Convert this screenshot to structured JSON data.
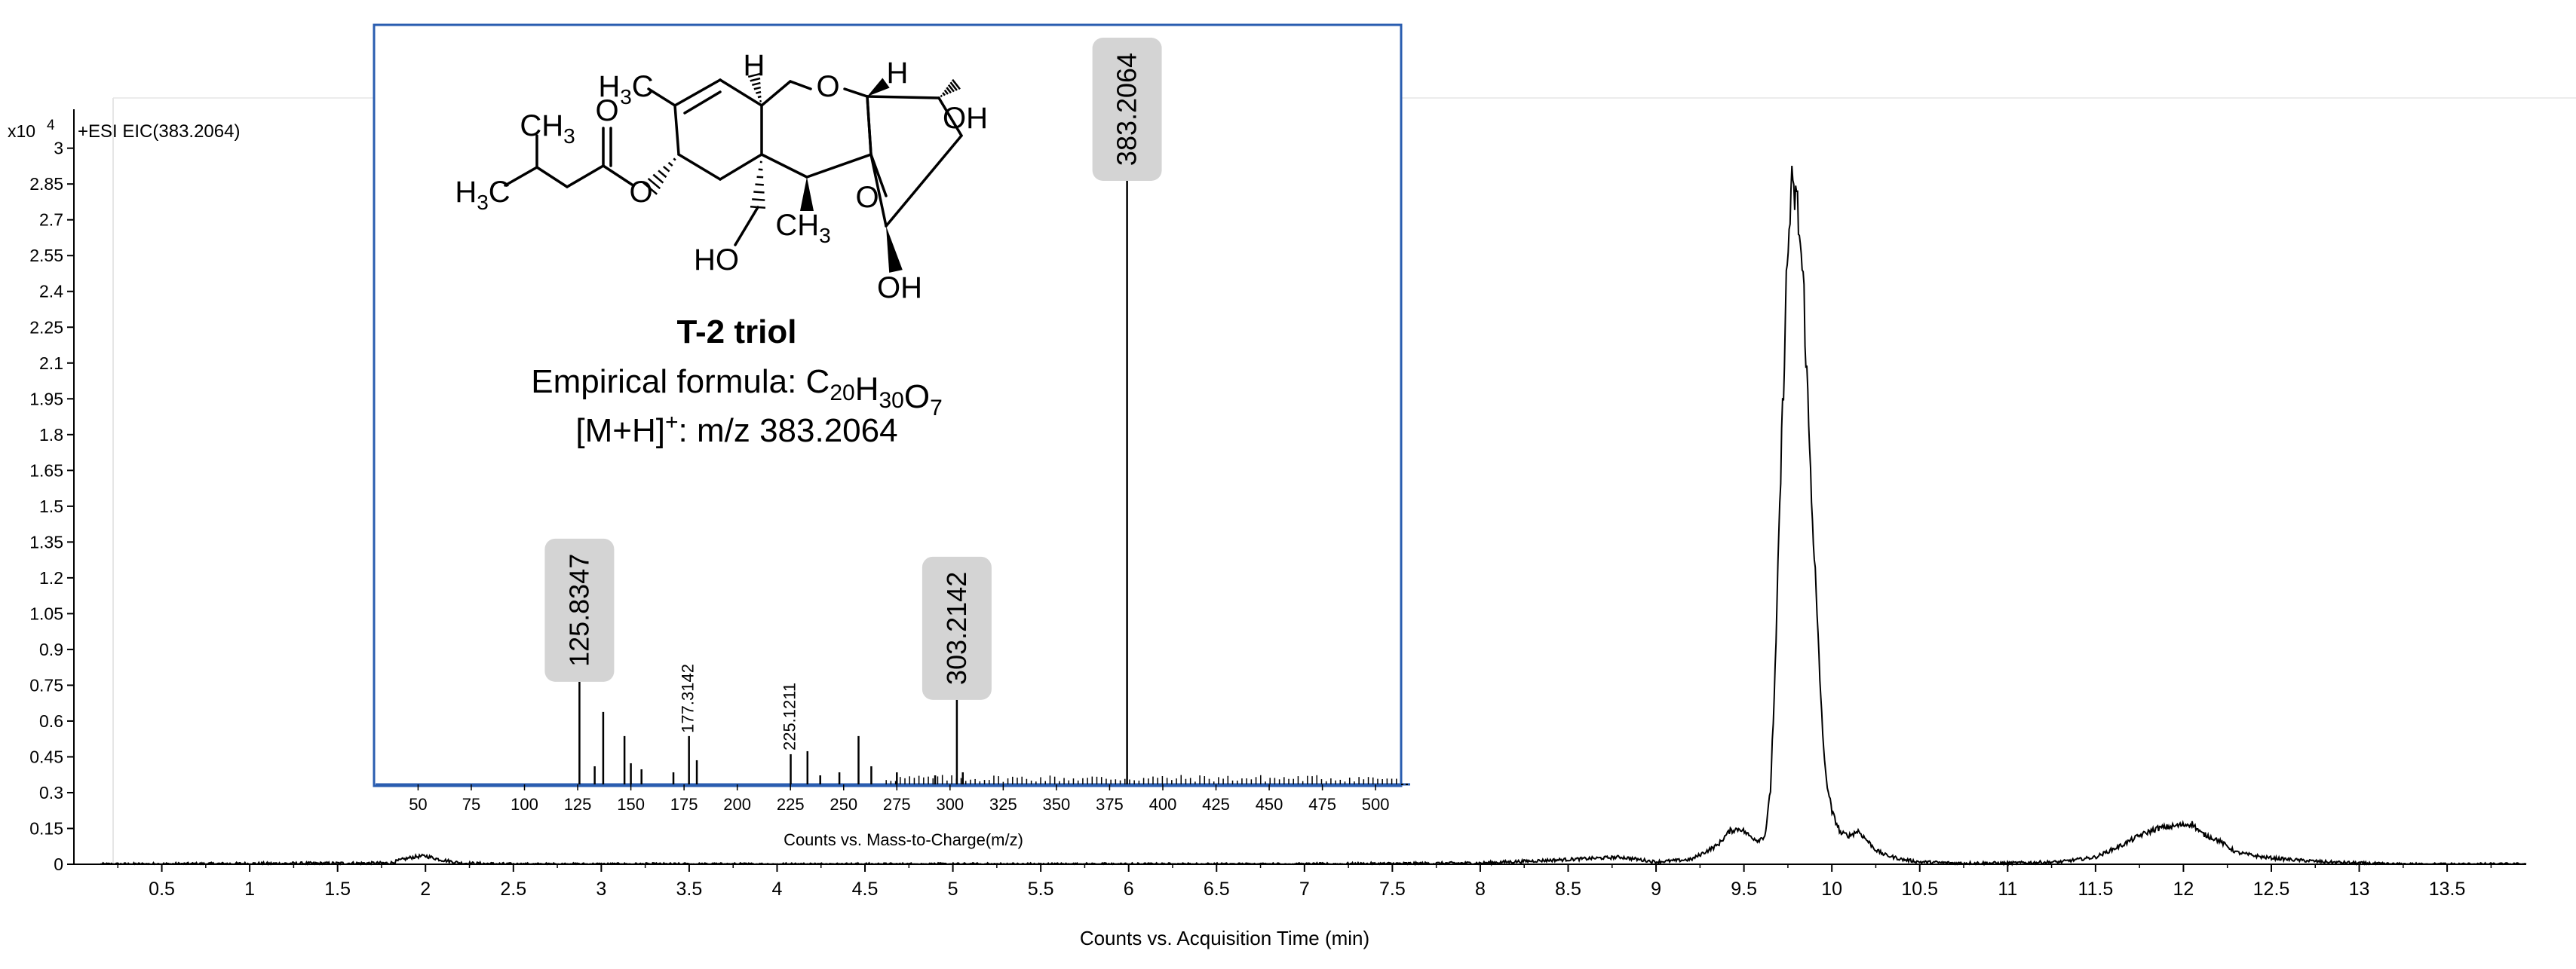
{
  "chart_data": [
    {
      "type": "line",
      "title": "+ESI EIC(383.2064)",
      "y_exponent_label": "x10",
      "y_exponent": "4",
      "xlabel": "Counts vs. Acquisition Time (min)",
      "ylabel": "",
      "xlim": [
        0.0,
        13.95
      ],
      "ylim": [
        0,
        3.1
      ],
      "x_ticks": [
        "0.5",
        "1",
        "1.5",
        "2",
        "2.5",
        "3",
        "3.5",
        "4",
        "4.5",
        "5",
        "5.5",
        "6",
        "6.5",
        "7",
        "7.5",
        "8",
        "8.5",
        "9",
        "9.5",
        "10",
        "10.5",
        "11",
        "11.5",
        "12",
        "12.5",
        "13",
        "13.5"
      ],
      "y_ticks": [
        "0",
        "0.15",
        "0.3",
        "0.45",
        "0.6",
        "0.75",
        "0.9",
        "1.05",
        "1.2",
        "1.35",
        "1.5",
        "1.65",
        "1.8",
        "1.95",
        "2.1",
        "2.25",
        "2.4",
        "2.55",
        "2.7",
        "2.85",
        "3"
      ],
      "series": [
        {
          "x": [
            0.15,
            1.8,
            1.87,
            1.93,
            2.0,
            2.08,
            2.2,
            2.5,
            3.0,
            4.0,
            5.0,
            6.0,
            7.0,
            8.0,
            8.5,
            8.8,
            9.0,
            9.2,
            9.35,
            9.42,
            9.48,
            9.53,
            9.58,
            9.62,
            9.65,
            9.68,
            9.7,
            9.72,
            9.74,
            9.76,
            9.77,
            9.78,
            9.79,
            9.8,
            9.82,
            9.84,
            9.87,
            9.9,
            9.93,
            9.96,
            10.0,
            10.05,
            10.1,
            10.15,
            10.2,
            10.25,
            10.3,
            10.4,
            10.5,
            10.7,
            11.0,
            11.3,
            11.5,
            11.65,
            11.75,
            11.85,
            11.95,
            12.05,
            12.1,
            12.2,
            12.3,
            12.45,
            12.6,
            12.8,
            13.0,
            13.2,
            13.5,
            13.95
          ],
          "y": [
            0,
            0.005,
            0.02,
            0.03,
            0.035,
            0.02,
            0.005,
            0,
            0,
            0,
            0,
            0,
            0,
            0.005,
            0.02,
            0.03,
            0.01,
            0.02,
            0.08,
            0.14,
            0.15,
            0.12,
            0.1,
            0.12,
            0.3,
            0.85,
            1.4,
            1.9,
            2.4,
            2.7,
            2.85,
            2.75,
            2.82,
            2.78,
            2.6,
            2.4,
            1.8,
            1.3,
            0.8,
            0.4,
            0.22,
            0.13,
            0.12,
            0.14,
            0.1,
            0.06,
            0.04,
            0.02,
            0.01,
            0.005,
            0.005,
            0.01,
            0.03,
            0.08,
            0.12,
            0.15,
            0.16,
            0.17,
            0.13,
            0.1,
            0.05,
            0.03,
            0.02,
            0.01,
            0.005,
            0,
            0,
            0
          ]
        }
      ]
    },
    {
      "type": "bar",
      "xlabel": "Counts vs. Mass-to-Charge(m/z)",
      "ylabel": "",
      "xlim": [
        30,
        512
      ],
      "ylim": [
        0,
        100
      ],
      "x_ticks": [
        "50",
        "75",
        "100",
        "125",
        "150",
        "175",
        "200",
        "225",
        "250",
        "275",
        "300",
        "325",
        "350",
        "375",
        "400",
        "425",
        "450",
        "475",
        "500"
      ],
      "values": [
        {
          "mz": 125.8347,
          "rel": 17
        },
        {
          "mz": 133,
          "rel": 3
        },
        {
          "mz": 137,
          "rel": 12
        },
        {
          "mz": 147,
          "rel": 8
        },
        {
          "mz": 150,
          "rel": 3.5
        },
        {
          "mz": 155,
          "rel": 2.5
        },
        {
          "mz": 170,
          "rel": 2
        },
        {
          "mz": 177.3142,
          "rel": 8
        },
        {
          "mz": 181,
          "rel": 4
        },
        {
          "mz": 225.1211,
          "rel": 5
        },
        {
          "mz": 233,
          "rel": 5.5
        },
        {
          "mz": 239,
          "rel": 1.5
        },
        {
          "mz": 248,
          "rel": 2
        },
        {
          "mz": 257,
          "rel": 8
        },
        {
          "mz": 263,
          "rel": 3
        },
        {
          "mz": 275,
          "rel": 2
        },
        {
          "mz": 293,
          "rel": 1.5
        },
        {
          "mz": 303.2142,
          "rel": 14
        },
        {
          "mz": 306,
          "rel": 2
        },
        {
          "mz": 383.2064,
          "rel": 100
        }
      ],
      "labels": [
        {
          "mz": 125.8347,
          "text": "125.8347",
          "boxed": true
        },
        {
          "mz": 177.3142,
          "text": "177.3142",
          "boxed": false
        },
        {
          "mz": 225.1211,
          "text": "225.1211",
          "boxed": false
        },
        {
          "mz": 303.2142,
          "text": "303.2142",
          "boxed": true
        },
        {
          "mz": 383.2064,
          "text": "383.2064",
          "boxed": true
        }
      ]
    }
  ],
  "compound": {
    "name": "T-2 triol",
    "formula_prefix": "Empirical formula: ",
    "formula": [
      {
        "t": "C",
        "sub": "20"
      },
      {
        "t": "H",
        "sub": "30"
      },
      {
        "t": "O",
        "sub": "7"
      }
    ],
    "ion_prefix": "[M+H]",
    "ion_sup": "+",
    "ion_suffix": ": m/z 383.2064",
    "atom_labels": {
      "h3c_top": "H3C",
      "ch3_ester": "CH3",
      "o_carbonyl": "O",
      "h3c_left": "H3C",
      "o_ester": "O",
      "h_top_left": "H",
      "o_ring": "O",
      "h_top_right": "H",
      "oh_right": "OH",
      "o_epoxide": "O",
      "ho_bottom": "HO",
      "ch3_bottom": "CH3",
      "oh_bottom": "OH"
    }
  },
  "colors": {
    "trace": "#000000",
    "axis": "#000000",
    "text": "#000000",
    "inset_border": "#2a5db0",
    "inset_axis": "#2a5db0",
    "label_box": "#d4d4d4"
  }
}
